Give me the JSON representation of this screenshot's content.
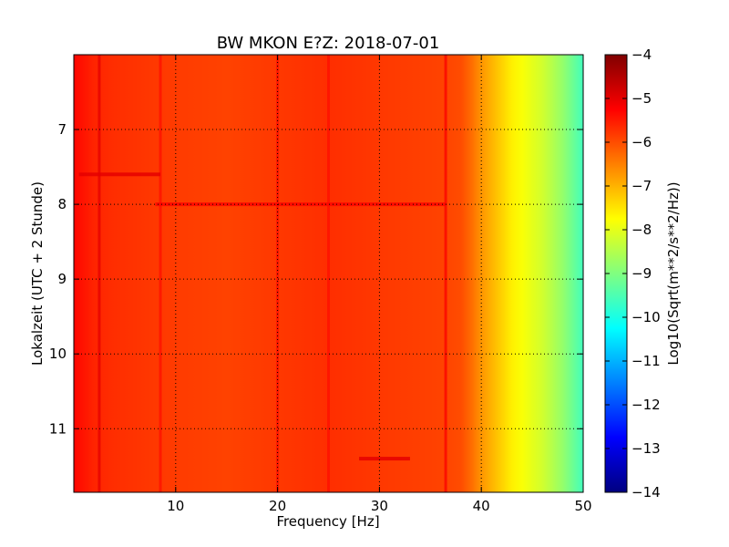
{
  "chart_data": {
    "type": "heatmap",
    "title": "BW MKON E?Z: 2018-07-01",
    "xlabel": "Frequency [Hz]",
    "ylabel": "Lokalzeit (UTC + 2 Stunde)",
    "xlim": [
      0,
      50
    ],
    "ylim": [
      6.0,
      11.85
    ],
    "y_inverted": true,
    "x_ticks": [
      10,
      20,
      30,
      40,
      50
    ],
    "y_ticks": [
      7,
      8,
      9,
      10,
      11
    ],
    "grid": "dotted",
    "colorbar": {
      "label": "Log10(Sqrt(m**2/s**2/Hz))",
      "range": [
        -14,
        -4
      ],
      "ticks": [
        -4,
        -5,
        -6,
        -7,
        -8,
        -9,
        -10,
        -11,
        -12,
        -13,
        -14
      ],
      "colormap": "jet"
    },
    "spectral_profile": {
      "frequency": [
        0,
        2,
        4,
        8,
        15,
        25,
        30,
        36,
        38,
        39,
        40,
        41,
        42,
        43,
        44,
        45,
        46,
        47,
        48,
        49,
        50
      ],
      "level": [
        -5.3,
        -5.6,
        -5.7,
        -5.8,
        -5.9,
        -5.7,
        -5.8,
        -5.9,
        -6.0,
        -6.3,
        -6.7,
        -7.0,
        -7.3,
        -7.6,
        -7.8,
        -8.0,
        -8.2,
        -8.5,
        -8.8,
        -9.2,
        -9.6
      ]
    },
    "line_features": [
      {
        "frequency": 2.5,
        "level": -5.0
      },
      {
        "frequency": 8.5,
        "level": -5.4
      },
      {
        "frequency": 20,
        "level": -5.4
      },
      {
        "frequency": 25,
        "level": -5.4
      },
      {
        "frequency": 36.5,
        "level": -5.2
      }
    ],
    "time_features": [
      {
        "time": 7.6,
        "freq_range": [
          0.5,
          8.5
        ],
        "level": -5.0
      },
      {
        "time": 8.0,
        "freq_range": [
          8,
          36.5
        ],
        "level": -5.3
      },
      {
        "time": 11.4,
        "freq_range": [
          28,
          33
        ],
        "level": -5.0
      }
    ]
  }
}
